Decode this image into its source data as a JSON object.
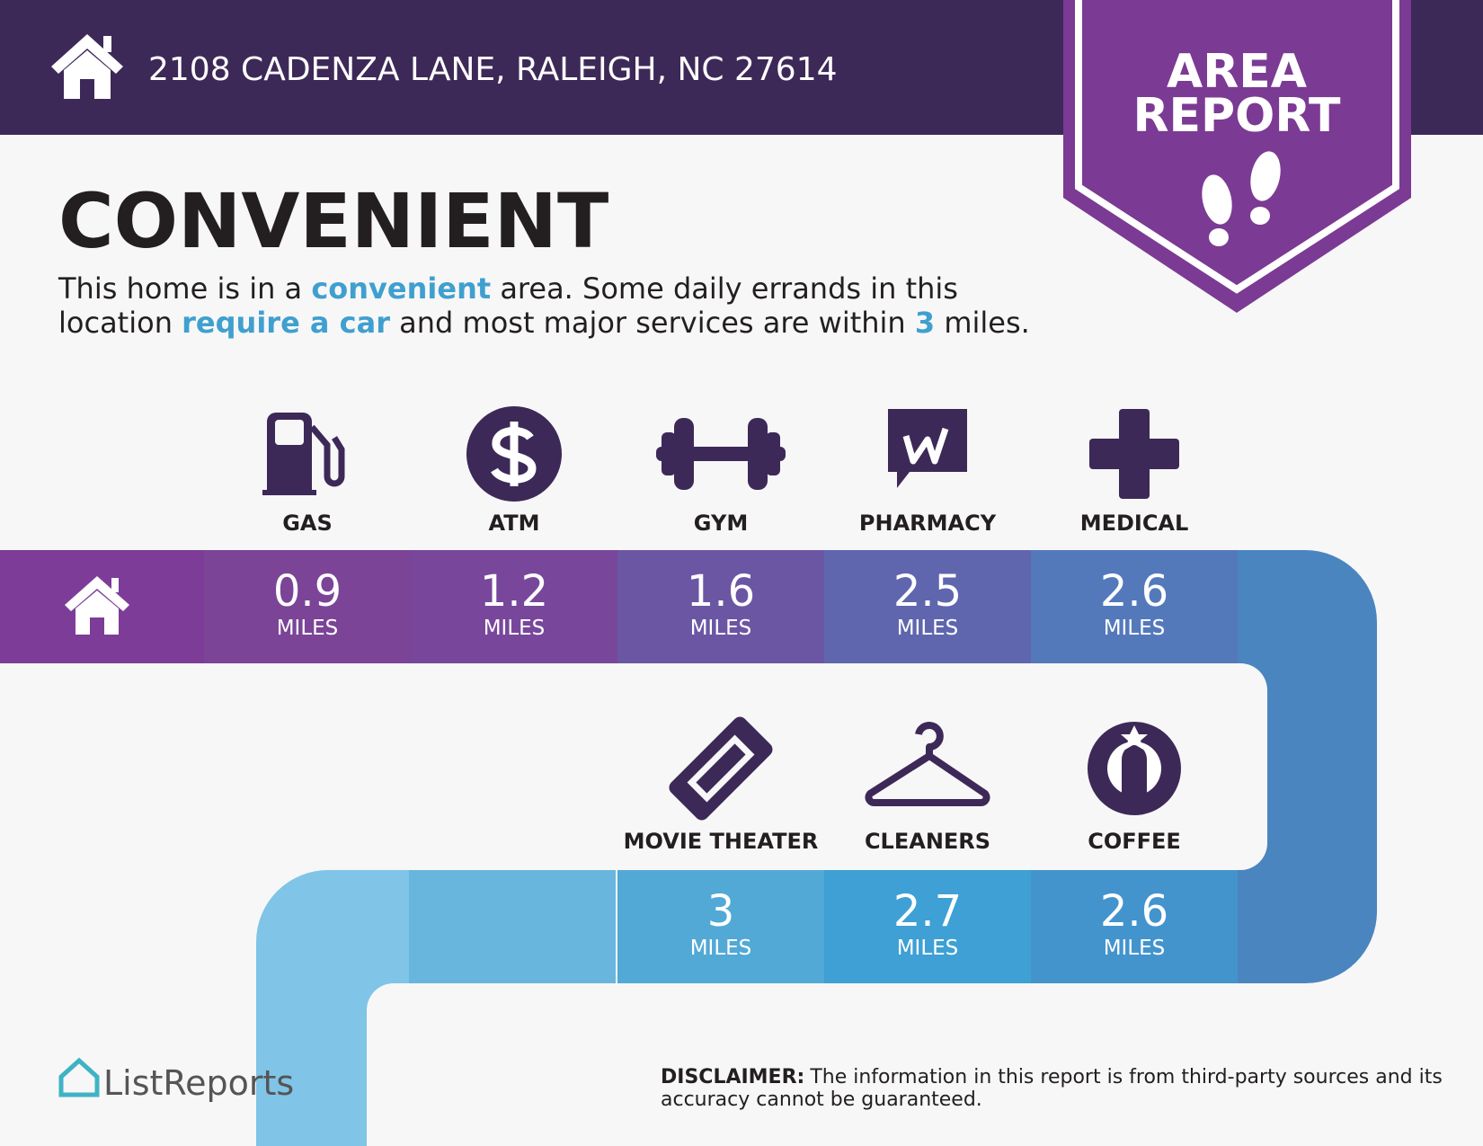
{
  "header": {
    "address": "2108 CADENZA LANE, RALEIGH, NC 27614",
    "badge": [
      "AREA",
      "REPORT"
    ]
  },
  "title": "CONVENIENT",
  "description": {
    "lines": [
      [
        {
          "text": "This home is in a "
        },
        {
          "text": "convenient",
          "highlight": true
        },
        {
          "text": " area. Some daily errands in this"
        }
      ],
      [
        {
          "text": "location "
        },
        {
          "text": "require a car",
          "highlight": true
        },
        {
          "text": " and most major services are within "
        },
        {
          "text": "3",
          "highlight": true
        },
        {
          "text": " miles."
        }
      ]
    ]
  },
  "amenities": [
    {
      "label": "GAS",
      "distance": 0.9,
      "unit": "MILES"
    },
    {
      "label": "ATM",
      "distance": 1.2,
      "unit": "MILES"
    },
    {
      "label": "GYM",
      "distance": 1.6,
      "unit": "MILES"
    },
    {
      "label": "PHARMACY",
      "distance": 2.5,
      "unit": "MILES"
    },
    {
      "label": "MEDICAL",
      "distance": 2.6,
      "unit": "MILES"
    },
    {
      "label": "MOVIE THEATER",
      "distance": 3,
      "unit": "MILES"
    },
    {
      "label": "CLEANERS",
      "distance": 2.7,
      "unit": "MILES"
    },
    {
      "label": "COFFEE",
      "distance": 2.6,
      "unit": "MILES"
    }
  ],
  "footer": {
    "brand": "ListReports"
  },
  "disclaimer": {
    "label": "DISCLAIMER:",
    "lines": [
      "The information in this report is from third-party sources and its",
      "accuracy cannot be guaranteed."
    ]
  }
}
